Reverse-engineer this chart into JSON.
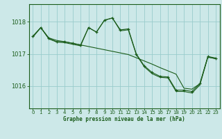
{
  "background_color": "#cce8e8",
  "grid_color": "#99cccc",
  "line_color": "#1a5c1a",
  "title": "Graphe pression niveau de la mer (hPa)",
  "xlim": [
    -0.5,
    23.5
  ],
  "ylim": [
    1015.3,
    1018.55
  ],
  "yticks": [
    1016,
    1017,
    1018
  ],
  "xticks": [
    0,
    1,
    2,
    3,
    4,
    5,
    6,
    7,
    8,
    9,
    10,
    11,
    12,
    13,
    14,
    15,
    16,
    17,
    18,
    19,
    20,
    21,
    22,
    23
  ],
  "line_smooth": {
    "x": [
      0,
      1,
      2,
      3,
      4,
      5,
      6,
      7,
      8,
      9,
      10,
      11,
      12,
      13,
      14,
      15,
      16,
      17,
      18,
      19,
      20,
      21,
      22,
      23
    ],
    "y": [
      1017.55,
      1017.82,
      1017.5,
      1017.42,
      1017.38,
      1017.33,
      1017.28,
      1017.23,
      1017.18,
      1017.13,
      1017.08,
      1017.03,
      1016.98,
      1016.88,
      1016.78,
      1016.68,
      1016.57,
      1016.47,
      1016.37,
      1015.93,
      1015.9,
      1016.07,
      1016.9,
      1016.85
    ]
  },
  "line_marked": {
    "x": [
      0,
      1,
      2,
      3,
      4,
      5,
      6,
      7,
      8,
      9,
      10,
      11,
      12,
      13,
      14,
      15,
      16,
      17,
      18,
      19,
      20,
      21,
      22,
      23
    ],
    "y": [
      1017.55,
      1017.82,
      1017.48,
      1017.38,
      1017.38,
      1017.33,
      1017.28,
      1017.82,
      1017.68,
      1018.05,
      1018.12,
      1017.75,
      1017.78,
      1017.0,
      1016.63,
      1016.42,
      1016.3,
      1016.28,
      1015.87,
      1015.87,
      1015.83,
      1016.07,
      1016.92,
      1016.87
    ]
  },
  "line_third": {
    "x": [
      0,
      1,
      2,
      3,
      4,
      5,
      6,
      7,
      8,
      9,
      10,
      11,
      12,
      13,
      14,
      15,
      16,
      17,
      18,
      19,
      20,
      21,
      22,
      23
    ],
    "y": [
      1017.52,
      1017.82,
      1017.47,
      1017.37,
      1017.35,
      1017.3,
      1017.25,
      1017.82,
      1017.68,
      1018.05,
      1018.12,
      1017.72,
      1017.75,
      1016.98,
      1016.6,
      1016.38,
      1016.27,
      1016.25,
      1015.83,
      1015.83,
      1015.78,
      1016.03,
      1016.9,
      1016.85
    ]
  }
}
